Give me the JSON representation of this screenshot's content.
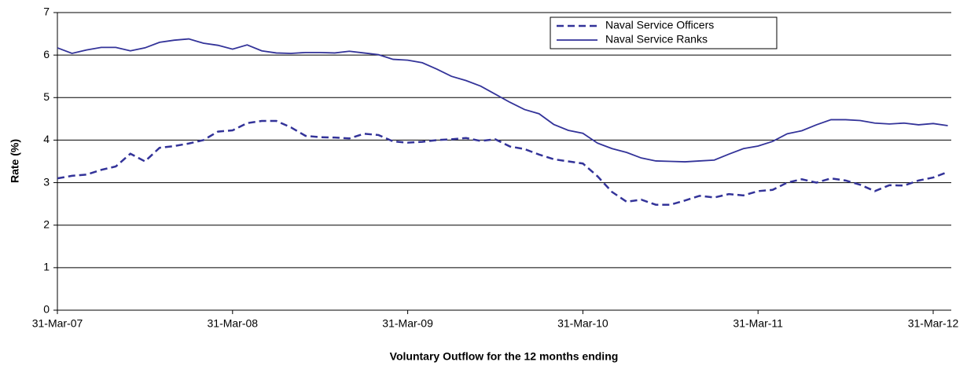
{
  "chart_data": {
    "type": "line",
    "x_label": "Voluntary Outflow for the 12 months ending",
    "y_label": "Rate (%)",
    "categories": [
      "31-Mar-07",
      null,
      null,
      null,
      null,
      null,
      null,
      null,
      null,
      null,
      null,
      null,
      "31-Mar-08",
      null,
      null,
      null,
      null,
      null,
      null,
      null,
      null,
      null,
      null,
      null,
      "31-Mar-09",
      null,
      null,
      null,
      null,
      null,
      null,
      null,
      null,
      null,
      null,
      null,
      "31-Mar-10",
      null,
      null,
      null,
      null,
      null,
      null,
      null,
      null,
      null,
      null,
      null,
      "31-Mar-11",
      null,
      null,
      null,
      null,
      null,
      null,
      null,
      null,
      null,
      null,
      null,
      "31-Mar-12",
      null
    ],
    "series": [
      {
        "name": "Naval Service Officers",
        "color": "#333399",
        "style": "dashed",
        "values": [
          3.1,
          3.16,
          3.19,
          3.3,
          3.38,
          3.68,
          3.5,
          3.82,
          3.86,
          3.92,
          4.0,
          4.2,
          4.23,
          4.4,
          4.45,
          4.45,
          4.3,
          4.1,
          4.07,
          4.06,
          4.04,
          4.15,
          4.12,
          3.97,
          3.94,
          3.96,
          4.0,
          4.02,
          4.05,
          3.98,
          4.02,
          3.85,
          3.79,
          3.66,
          3.55,
          3.5,
          3.45,
          3.15,
          2.78,
          2.55,
          2.6,
          2.48,
          2.48,
          2.58,
          2.69,
          2.65,
          2.73,
          2.7,
          2.8,
          2.83,
          3.0,
          3.08,
          3.0,
          3.1,
          3.05,
          2.95,
          2.8,
          2.94,
          2.93,
          3.05,
          3.12,
          3.25
        ]
      },
      {
        "name": "Naval Service Ranks",
        "color": "#333399",
        "style": "solid",
        "values": [
          6.17,
          6.04,
          6.12,
          6.18,
          6.18,
          6.1,
          6.17,
          6.3,
          6.35,
          6.38,
          6.28,
          6.23,
          6.14,
          6.24,
          6.1,
          6.05,
          6.04,
          6.06,
          6.06,
          6.05,
          6.09,
          6.05,
          6.01,
          5.9,
          5.88,
          5.82,
          5.67,
          5.5,
          5.4,
          5.27,
          5.08,
          4.89,
          4.72,
          4.62,
          4.37,
          4.23,
          4.16,
          3.93,
          3.8,
          3.71,
          3.58,
          3.51,
          3.5,
          3.49,
          3.51,
          3.53,
          3.67,
          3.8,
          3.86,
          3.97,
          4.15,
          4.22,
          4.36,
          4.48,
          4.48,
          4.46,
          4.4,
          4.38,
          4.4,
          4.36,
          4.39,
          4.34
        ]
      }
    ],
    "ylim": [
      0,
      7
    ],
    "yticks": [
      0,
      1,
      2,
      3,
      4,
      5,
      6,
      7
    ],
    "grid": true,
    "legend": "top-right"
  }
}
